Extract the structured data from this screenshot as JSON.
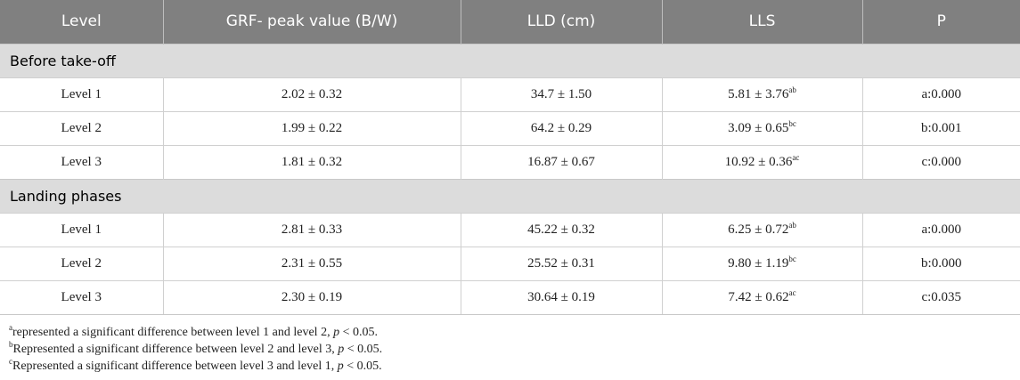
{
  "table": {
    "header": [
      "Level",
      "GRF- peak value (B/W)",
      "LLD (cm)",
      "LLS",
      "P"
    ],
    "sections": [
      {
        "title": "Before take-off",
        "rows": [
          [
            "Level 1",
            "2.02 ± 0.32",
            "34.7 ± 1.50",
            {
              "text": "5.81 ± 3.76",
              "sup": "ab"
            },
            "a:0.000"
          ],
          [
            "Level 2",
            "1.99 ± 0.22",
            "64.2 ± 0.29",
            {
              "text": "3.09 ± 0.65",
              "sup": "bc"
            },
            "b:0.001"
          ],
          [
            "Level 3",
            "1.81 ± 0.32",
            "16.87 ± 0.67",
            {
              "text": "10.92 ± 0.36",
              "sup": "ac"
            },
            "c:0.000"
          ]
        ]
      },
      {
        "title": "Landing phases",
        "rows": [
          [
            "Level 1",
            "2.81 ± 0.33",
            "45.22 ± 0.32",
            {
              "text": "6.25 ± 0.72",
              "sup": "ab"
            },
            "a:0.000"
          ],
          [
            "Level 2",
            "2.31 ± 0.55",
            "25.52 ± 0.31",
            {
              "text": "9.80 ± 1.19",
              "sup": "bc"
            },
            "b:0.000"
          ],
          [
            "Level 3",
            "2.30 ± 0.19",
            "30.64 ± 0.19",
            {
              "text": "7.42 ± 0.62",
              "sup": "ac"
            },
            "c:0.035"
          ]
        ]
      }
    ]
  },
  "footnotes": [
    {
      "mark": "a",
      "text": "represented a significant difference between level 1 and level 2, ",
      "italic": "p",
      "rest": " < 0.05."
    },
    {
      "mark": "b",
      "text": "Represented a significant difference between level 2 and level 3, ",
      "italic": "p",
      "rest": " < 0.05."
    },
    {
      "mark": "c",
      "text": "Represented a significant difference between level 3 and level 1, ",
      "italic": "p",
      "rest": " < 0.05."
    }
  ]
}
